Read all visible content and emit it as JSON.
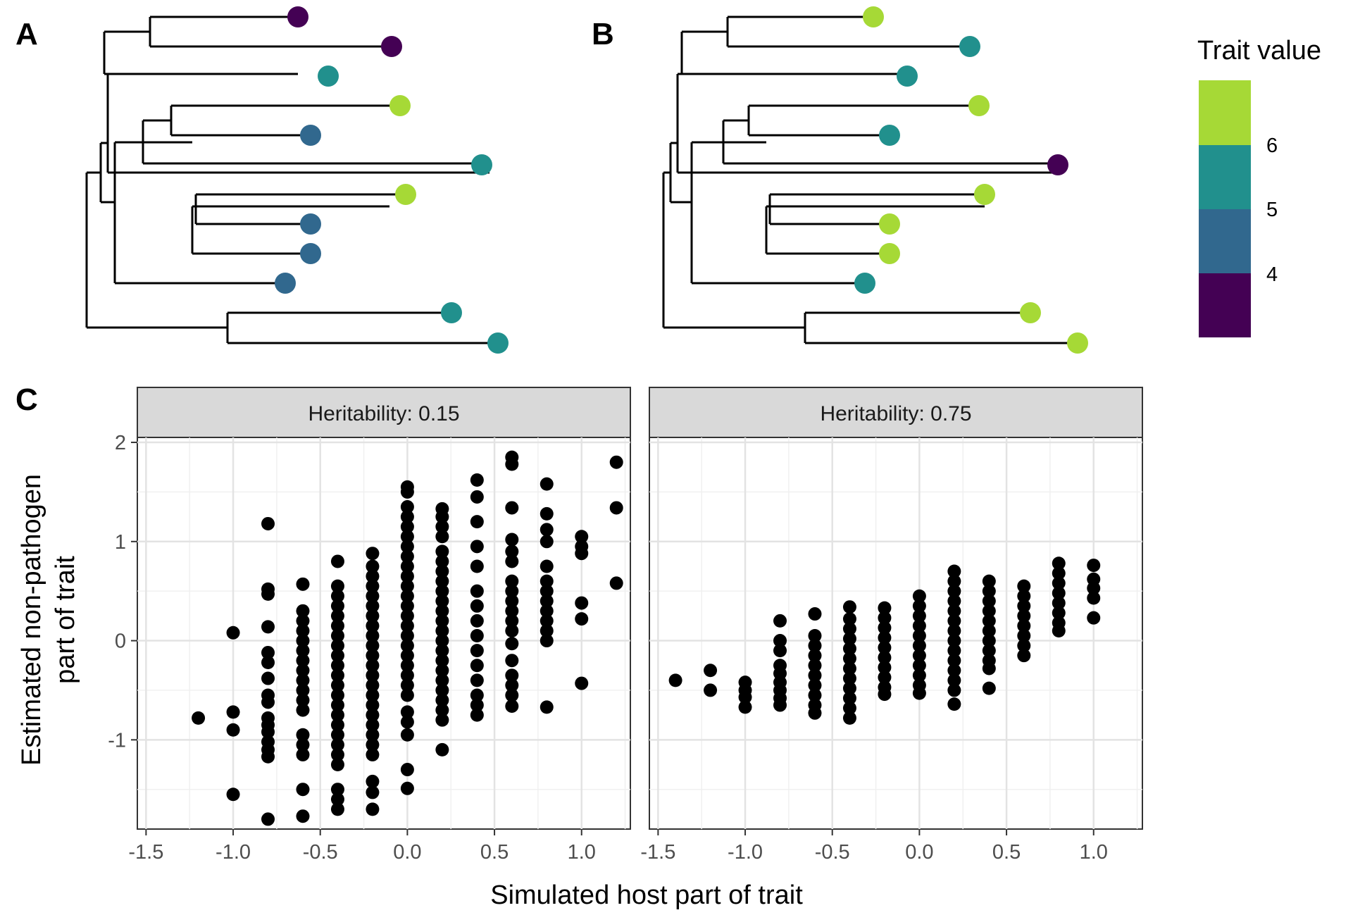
{
  "panel_labels": {
    "a": "A",
    "b": "B",
    "c": "C"
  },
  "legend": {
    "title": "Trait value",
    "labels": [
      "6",
      "5",
      "4"
    ],
    "colors": [
      "#440154",
      "#31688e",
      "#21908d",
      "#35b779",
      "#a6d936"
    ]
  },
  "chart_data": [
    {
      "type": "tree",
      "panel": "A",
      "tips": [
        {
          "trait": 3.2
        },
        {
          "trait": 3.3
        },
        {
          "trait": 5.0
        },
        {
          "trait": 6.4
        },
        {
          "trait": 4.3
        },
        {
          "trait": 5.0
        },
        {
          "trait": 6.4
        },
        {
          "trait": 4.3
        },
        {
          "trait": 4.3
        },
        {
          "trait": 4.3
        },
        {
          "trait": 5.0
        },
        {
          "trait": 5.0
        }
      ]
    },
    {
      "type": "tree",
      "panel": "B",
      "tips": [
        {
          "trait": 6.5
        },
        {
          "trait": 5.2
        },
        {
          "trait": 5.3
        },
        {
          "trait": 6.5
        },
        {
          "trait": 5.3
        },
        {
          "trait": 3.3
        },
        {
          "trait": 6.5
        },
        {
          "trait": 6.5
        },
        {
          "trait": 6.5
        },
        {
          "trait": 4.6
        },
        {
          "trait": 6.5
        },
        {
          "trait": 6.5
        }
      ]
    },
    {
      "type": "scatter",
      "panel": "C",
      "xlabel": "Simulated host part of trait",
      "ylabel": "Estimated non-pathogen part of trait",
      "ylabel_lines": [
        "Estimated non-pathogen",
        "part of trait"
      ],
      "xticks": [
        "-1.5",
        "-1.0",
        "-0.5",
        "0.0",
        "0.5",
        "1.0"
      ],
      "yticks": [
        "2",
        "1",
        "0",
        "-1"
      ],
      "facets": [
        {
          "label": "Heritability: 0.15",
          "xlim": [
            -1.55,
            1.28
          ],
          "ylim": [
            -1.9,
            2.05
          ],
          "columns": [
            {
              "x": -1.2,
              "y": [
                -0.78
              ]
            },
            {
              "x": -1.0,
              "y": [
                0.08,
                -0.72,
                -0.9,
                -1.55
              ]
            },
            {
              "x": -0.8,
              "y": [
                1.18,
                0.52,
                0.47,
                0.14,
                -0.12,
                -0.22,
                -0.38,
                -0.55,
                -0.62,
                -0.78,
                -0.85,
                -0.92,
                -1.02,
                -1.1,
                -1.17,
                -1.8
              ]
            },
            {
              "x": -0.6,
              "y": [
                0.57,
                0.3,
                0.2,
                0.1,
                0.0,
                -0.1,
                -0.2,
                -0.3,
                -0.4,
                -0.5,
                -0.6,
                -0.7,
                -0.95,
                -1.05,
                -1.15,
                -1.5,
                -1.77
              ]
            },
            {
              "x": -0.4,
              "y": [
                0.8,
                0.55,
                0.45,
                0.35,
                0.25,
                0.15,
                0.05,
                -0.05,
                -0.15,
                -0.25,
                -0.35,
                -0.45,
                -0.55,
                -0.65,
                -0.75,
                -0.85,
                -0.95,
                -1.05,
                -1.15,
                -1.25,
                -1.5,
                -1.6,
                -1.7
              ]
            },
            {
              "x": -0.2,
              "y": [
                0.88,
                0.75,
                0.65,
                0.55,
                0.45,
                0.35,
                0.25,
                0.15,
                0.05,
                -0.05,
                -0.15,
                -0.25,
                -0.35,
                -0.45,
                -0.55,
                -0.65,
                -0.75,
                -0.85,
                -0.95,
                -1.05,
                -1.15,
                -1.42,
                -1.53,
                -1.7
              ]
            },
            {
              "x": 0.0,
              "y": [
                1.55,
                1.5,
                1.35,
                1.25,
                1.15,
                1.05,
                0.95,
                0.85,
                0.75,
                0.65,
                0.55,
                0.45,
                0.35,
                0.25,
                0.15,
                0.05,
                -0.05,
                -0.15,
                -0.25,
                -0.35,
                -0.45,
                -0.55,
                -0.72,
                -0.82,
                -0.95,
                -1.3,
                -1.49
              ]
            },
            {
              "x": 0.2,
              "y": [
                1.33,
                1.25,
                1.15,
                1.05,
                0.9,
                0.8,
                0.7,
                0.6,
                0.5,
                0.4,
                0.3,
                0.2,
                0.1,
                0.0,
                -0.1,
                -0.2,
                -0.3,
                -0.4,
                -0.5,
                -0.6,
                -0.7,
                -0.8,
                -1.1
              ]
            },
            {
              "x": 0.4,
              "y": [
                1.62,
                1.45,
                1.2,
                0.95,
                0.75,
                0.5,
                0.35,
                0.2,
                0.05,
                -0.1,
                -0.25,
                -0.4,
                -0.55,
                -0.65,
                -0.75
              ]
            },
            {
              "x": 0.6,
              "y": [
                1.85,
                1.78,
                1.34,
                1.02,
                0.9,
                0.8,
                0.6,
                0.5,
                0.4,
                0.3,
                0.2,
                0.1,
                -0.03,
                -0.2,
                -0.35,
                -0.45,
                -0.55,
                -0.66
              ]
            },
            {
              "x": 0.8,
              "y": [
                1.58,
                1.28,
                1.12,
                1.0,
                0.75,
                0.6,
                0.5,
                0.4,
                0.3,
                0.2,
                0.1,
                0.0,
                -0.67
              ]
            },
            {
              "x": 1.0,
              "y": [
                1.05,
                0.95,
                0.88,
                0.38,
                0.22,
                -0.43
              ]
            },
            {
              "x": 1.2,
              "y": [
                1.8,
                1.34,
                0.58
              ]
            }
          ]
        },
        {
          "label": "Heritability: 0.75",
          "xlim": [
            -1.55,
            1.28
          ],
          "ylim": [
            -1.9,
            2.05
          ],
          "columns": [
            {
              "x": -1.4,
              "y": [
                -0.4
              ]
            },
            {
              "x": -1.2,
              "y": [
                -0.3,
                -0.5
              ]
            },
            {
              "x": -1.0,
              "y": [
                -0.42,
                -0.5,
                -0.57,
                -0.67
              ]
            },
            {
              "x": -0.8,
              "y": [
                0.2,
                0.0,
                -0.1,
                -0.25,
                -0.33,
                -0.42,
                -0.5,
                -0.58,
                -0.65
              ]
            },
            {
              "x": -0.6,
              "y": [
                0.27,
                0.05,
                -0.05,
                -0.15,
                -0.25,
                -0.35,
                -0.45,
                -0.55,
                -0.65,
                -0.73
              ]
            },
            {
              "x": -0.4,
              "y": [
                0.34,
                0.22,
                0.12,
                0.02,
                -0.08,
                -0.18,
                -0.28,
                -0.38,
                -0.48,
                -0.58,
                -0.68,
                -0.78
              ]
            },
            {
              "x": -0.2,
              "y": [
                0.33,
                0.23,
                0.13,
                0.03,
                -0.07,
                -0.17,
                -0.27,
                -0.37,
                -0.47,
                -0.54
              ]
            },
            {
              "x": 0.0,
              "y": [
                0.45,
                0.35,
                0.25,
                0.15,
                0.05,
                -0.05,
                -0.15,
                -0.25,
                -0.35,
                -0.45,
                -0.53
              ]
            },
            {
              "x": 0.2,
              "y": [
                0.7,
                0.6,
                0.5,
                0.4,
                0.3,
                0.2,
                0.1,
                0.0,
                -0.1,
                -0.2,
                -0.3,
                -0.4,
                -0.5,
                -0.64
              ]
            },
            {
              "x": 0.4,
              "y": [
                0.6,
                0.5,
                0.4,
                0.3,
                0.2,
                0.1,
                0.0,
                -0.1,
                -0.2,
                -0.28,
                -0.48
              ]
            },
            {
              "x": 0.6,
              "y": [
                0.55,
                0.45,
                0.35,
                0.25,
                0.15,
                0.05,
                -0.05,
                -0.15
              ]
            },
            {
              "x": 0.8,
              "y": [
                0.78,
                0.68,
                0.58,
                0.48,
                0.38,
                0.28,
                0.18,
                0.1
              ]
            },
            {
              "x": 1.0,
              "y": [
                0.76,
                0.62,
                0.53,
                0.43,
                0.23
              ]
            }
          ]
        }
      ]
    }
  ]
}
